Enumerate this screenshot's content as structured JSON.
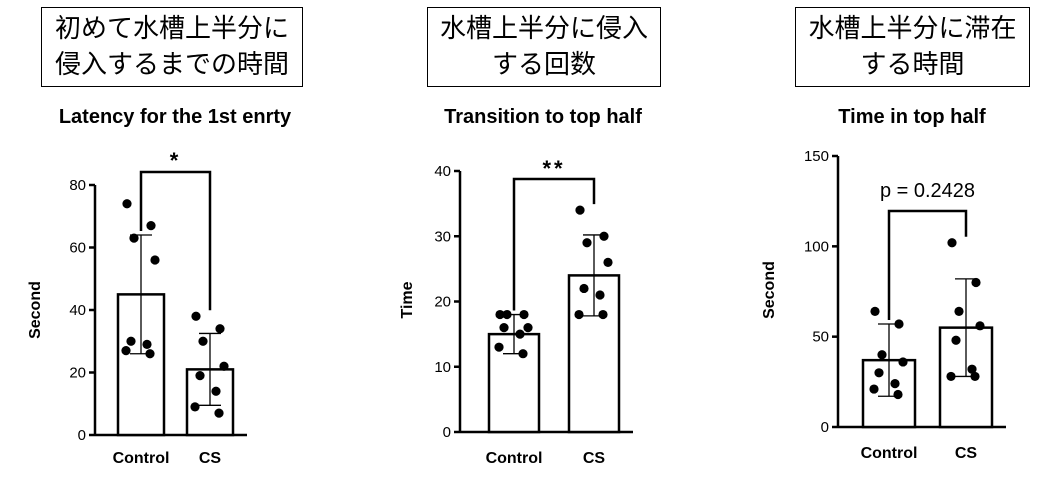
{
  "panels": [
    {
      "header_line1": "初めて水槽上半分に",
      "header_line2": "侵入するまでの時間"
    },
    {
      "header_line1": "水槽上半分に侵入",
      "header_line2": "する回数"
    },
    {
      "header_line1": "水槽上半分に滞在",
      "header_line2": "する時間"
    }
  ],
  "chart_data": [
    {
      "type": "bar",
      "title": "Latency for the 1st enrty",
      "ylabel": "Second",
      "xlabel": "",
      "categories": [
        "Control",
        "CS"
      ],
      "ylim": [
        0,
        80
      ],
      "yticks": [
        "0",
        "20",
        "40",
        "60",
        "80"
      ],
      "values": [
        45,
        21
      ],
      "sd": [
        19,
        11.5
      ],
      "points": [
        [
          74,
          67,
          63,
          56,
          30,
          29,
          27,
          26
        ],
        [
          38,
          34,
          30,
          22,
          19,
          14,
          9,
          7
        ]
      ],
      "significance": "*",
      "grid": false
    },
    {
      "type": "bar",
      "title": "Transition to top half",
      "ylabel": "Time",
      "xlabel": "",
      "categories": [
        "Control",
        "CS"
      ],
      "ylim": [
        0,
        40
      ],
      "yticks": [
        "0",
        "10",
        "20",
        "30",
        "40"
      ],
      "values": [
        15,
        24
      ],
      "sd": [
        3,
        6.2
      ],
      "points": [
        [
          18,
          18,
          18,
          16,
          16,
          15,
          13,
          12
        ],
        [
          34,
          30,
          29,
          26,
          22,
          21,
          18,
          18
        ]
      ],
      "significance": "**",
      "grid": false
    },
    {
      "type": "bar",
      "title": "Time in top half",
      "ylabel": "Second",
      "xlabel": "",
      "categories": [
        "Control",
        "CS"
      ],
      "ylim": [
        0,
        150
      ],
      "yticks": [
        "0",
        "50",
        "100",
        "150"
      ],
      "values": [
        37,
        55
      ],
      "sd": [
        20,
        27
      ],
      "points": [
        [
          64,
          57,
          40,
          36,
          30,
          24,
          21,
          18
        ],
        [
          102,
          80,
          64,
          56,
          48,
          32,
          28,
          28
        ]
      ],
      "significance": "p = 0.2428",
      "grid": false
    }
  ]
}
